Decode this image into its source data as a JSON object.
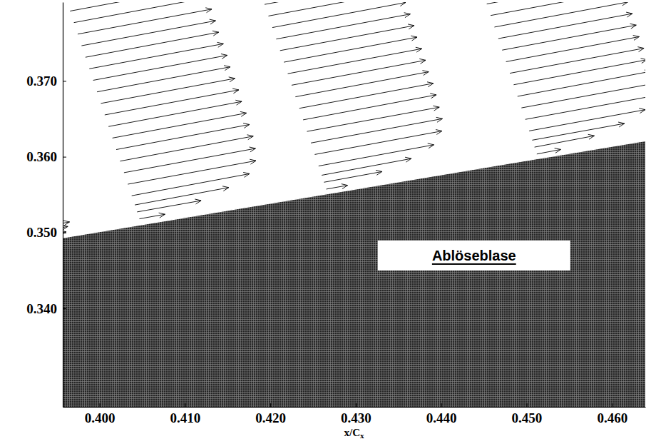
{
  "chart_data": {
    "type": "vector",
    "xlabel": {
      "text": "x/C",
      "subscript": "x"
    },
    "xlim": [
      0.3957,
      0.4639
    ],
    "ylim": [
      0.327,
      0.3804
    ],
    "xticks": [
      {
        "value": 0.4,
        "label": "0.400"
      },
      {
        "value": 0.41,
        "label": "0.410"
      },
      {
        "value": 0.42,
        "label": "0.420"
      },
      {
        "value": 0.43,
        "label": "0.430"
      },
      {
        "value": 0.44,
        "label": "0.440"
      },
      {
        "value": 0.45,
        "label": "0.450"
      },
      {
        "value": 0.46,
        "label": "0.460"
      }
    ],
    "yticks": [
      {
        "value": 0.34,
        "label": "0.340"
      },
      {
        "value": 0.35,
        "label": "0.350"
      },
      {
        "value": 0.36,
        "label": "0.360"
      },
      {
        "value": 0.37,
        "label": "0.370"
      }
    ],
    "grid": false,
    "color": "#000000",
    "wall": {
      "x": [
        0.3957,
        0.4639
      ],
      "y": [
        0.3493,
        0.3621
      ]
    },
    "profiles": [
      {
        "x": [
          0.394,
          0.394,
          0.3941
        ],
        "y": [
          0.3497,
          0.3503,
          0.3509
        ],
        "u": [
          0.0021,
          0.0023,
          0.0024
        ],
        "v": [
          0.0004,
          0.0005,
          0.0005
        ]
      },
      {
        "x": [
          0.40467,
          0.4044,
          0.40413,
          0.40377,
          0.40332,
          0.40287,
          0.40241,
          0.40196,
          0.40151,
          0.40106,
          0.40061,
          0.40016,
          0.39971,
          0.39926,
          0.39881,
          0.39836,
          0.3979,
          0.39745,
          0.397,
          0.39655
        ],
        "y": [
          0.35181,
          0.35272,
          0.35364,
          0.35486,
          0.35638,
          0.3579,
          0.35942,
          0.36095,
          0.36247,
          0.36399,
          0.36552,
          0.36704,
          0.36856,
          0.37009,
          0.37161,
          0.37313,
          0.37465,
          0.37618,
          0.3777,
          0.37922
        ],
        "u": [
          0.003,
          0.0075,
          0.011,
          0.0138,
          0.015,
          0.0154,
          0.0156,
          0.0156,
          0.0157,
          0.0156,
          0.0157,
          0.0157,
          0.0156,
          0.0157,
          0.0157,
          0.0156,
          0.0157,
          0.0157,
          0.0156,
          0.0157
        ],
        "v": [
          0.0006,
          0.0015,
          0.0023,
          0.0029,
          0.0031,
          0.0032,
          0.0033,
          0.0033,
          0.0033,
          0.0033,
          0.0033,
          0.0033,
          0.0033,
          0.0033,
          0.0033,
          0.0033,
          0.0033,
          0.0033,
          0.0033,
          0.0033
        ]
      },
      {
        "x": [
          0.42655,
          0.42628,
          0.42601,
          0.42565,
          0.4252,
          0.42475,
          0.42429,
          0.42384,
          0.42339,
          0.42294,
          0.42249,
          0.42204,
          0.42159,
          0.42114,
          0.42069,
          0.42024,
          0.41978,
          0.41933
        ],
        "y": [
          0.35573,
          0.35664,
          0.35756,
          0.35878,
          0.3603,
          0.36182,
          0.36334,
          0.36487,
          0.36639,
          0.36791,
          0.36944,
          0.37096,
          0.37248,
          0.37401,
          0.37553,
          0.37705,
          0.37857,
          0.3801
        ],
        "u": [
          0.0025,
          0.0068,
          0.0105,
          0.0135,
          0.0149,
          0.0154,
          0.0155,
          0.0156,
          0.0157,
          0.0156,
          0.0157,
          0.0157,
          0.0156,
          0.0157,
          0.0157,
          0.0156,
          0.0157,
          0.0157
        ],
        "v": [
          0.0005,
          0.0014,
          0.0022,
          0.0028,
          0.0031,
          0.0032,
          0.0032,
          0.0033,
          0.0033,
          0.0033,
          0.0033,
          0.0033,
          0.0033,
          0.0033,
          0.0033,
          0.0033,
          0.0033,
          0.0033
        ]
      },
      {
        "x": [
          0.4512,
          0.45093,
          0.45066,
          0.4503,
          0.44985,
          0.4494,
          0.44894,
          0.44849,
          0.44804,
          0.44759,
          0.44714,
          0.44669,
          0.44624,
          0.44579,
          0.44534
        ],
        "y": [
          0.36036,
          0.36127,
          0.36219,
          0.36341,
          0.36493,
          0.36645,
          0.36797,
          0.3695,
          0.37102,
          0.37254,
          0.37407,
          0.37559,
          0.37711,
          0.37864,
          0.38016
        ],
        "u": [
          0.0028,
          0.007,
          0.0108,
          0.0136,
          0.015,
          0.0154,
          0.0156,
          0.0156,
          0.0157,
          0.0156,
          0.0157,
          0.0157,
          0.0156,
          0.0157,
          0.0157
        ],
        "v": [
          0.0006,
          0.0015,
          0.0022,
          0.0028,
          0.0031,
          0.0032,
          0.0033,
          0.0033,
          0.0033,
          0.0033,
          0.0033,
          0.0033,
          0.0033,
          0.0033,
          0.0033
        ]
      }
    ],
    "annotations": [
      {
        "text": "Ablöseblase"
      }
    ]
  }
}
